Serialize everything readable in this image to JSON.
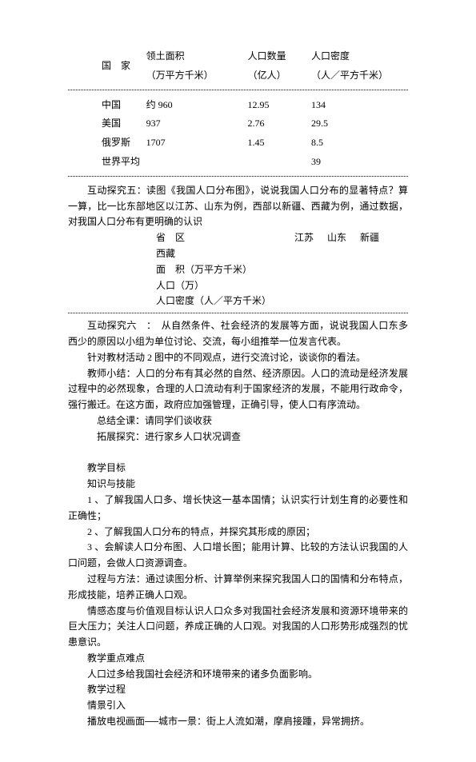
{
  "table1": {
    "header": {
      "c0": "国　家",
      "c1a": "领土面积",
      "c1b": "（万平方千米）",
      "c2a": "人口数量",
      "c2b": "（亿人）",
      "c3a": "人口密度",
      "c3b": "（人／平方千米）"
    },
    "rows": [
      {
        "c0": "中国",
        "c1": "约 960",
        "c2": "12.95",
        "c3": "134"
      },
      {
        "c0": "美国",
        "c1": "937",
        "c2": "2.76",
        "c3": "29.5"
      },
      {
        "c0": "俄罗斯",
        "c1": "1707",
        "c2": "1.45",
        "c3": "8.5"
      },
      {
        "c0": "世界平均",
        "c1": "",
        "c2": "",
        "c3": "39"
      }
    ]
  },
  "para1": "互动探究五：读图《我国人口分布图》，说说我国人口分布的显著特点？算一算，比一比东部地区以江苏、山东为例，西部以新疆、西藏为例，通过数据，对我国人口分布有更明确的认识",
  "table2": {
    "r0": {
      "label": "省　区",
      "h1": "江苏",
      "h2": "山东",
      "h3": "新疆",
      "h4": "西藏"
    },
    "r1": "面　积（万平方千米）",
    "r2": "人口（万）",
    "r3": "人口密度（人／平方千米）"
  },
  "para2": "互动探究六　：　从自然条件、社会经济的发展等方面，说说我国人口东多西少的原因以小组为单位讨论、交流，每小组推举一位发言代表。",
  "para3": "针对教材活动 2 图中的不同观点，进行交流讨论，谈谈你的看法。",
  "para4": "教师小结：人口的分布有其必然的自然、经济原因。人口的流动是经济发展过程中的必然现象，合理的人口流动有利于国家经济的发展，不能用行政命令，强行搬迁。在这方面，政府应加强管理，正确引导，使人口有序流动。",
  "para5": "总结全课：请同学们谈收获",
  "para6": "拓展探究：进行家乡人口状况调查",
  "section1": "教学目标",
  "section2": "知识与技能",
  "obj1": "1 、了解我国人口多、增长快这一基本国情；认识实行计划生育的必要性和正确性；",
  "obj2": "2 、了解我国人口分布的特点，并探究其形成的原因；",
  "obj3": "3 、会解读人口分布图、人口增长图；能用计算、比较的方法认识我国的人口问题，会做人口资源调查。",
  "proc": "过程与方法：通过读图分析、计算举例来探究我国人口的国情和分布特点，形成技能，培养正确人口观。",
  "attitude": "情感态度与价值观目标认识人口众多对我国社会经济发展和资源环境带来的巨大压力；关注人口问题，养成正确的人口观。对我国的人口形势形成强烈的忧患意识。",
  "sect_key": "教学重点难点",
  "key1": "人口过多给我国社会经济和环境带来的诸多负面影响。",
  "sect_proc": "教学过程",
  "lead": "情景引入",
  "lead1": "播放电视画面──城市一景：街上人流如潮，摩肩接踵，异常拥挤。"
}
